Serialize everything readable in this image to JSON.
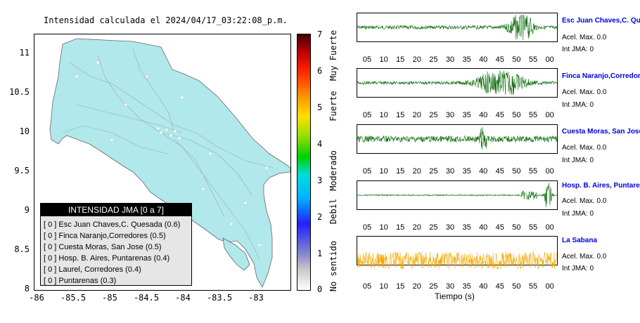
{
  "map": {
    "title": "Intensidad calculada el 2024/04/17_03:22:08_p.m.",
    "y_ticks": [
      "11",
      "10.5",
      "10",
      "9.5",
      "9",
      "8.5",
      "8"
    ],
    "x_ticks": [
      "-86",
      "-85.5",
      "-85",
      "-84.5",
      "-84",
      "-83.5",
      "-83"
    ],
    "land_color": "#b0e8ec",
    "colorbar": {
      "ticks": [
        "7",
        "6",
        "5",
        "4",
        "3",
        "2",
        "1",
        "0"
      ],
      "categories": [
        "Muy Fuerte",
        "Fuerte",
        "Moderado",
        "Debil",
        "No sentido"
      ]
    },
    "legend": {
      "title": "INTENSIDAD JMA [0 a 7]",
      "items": [
        "[ 0 ]  Esc Juan Chaves,C. Quesada (0.6)",
        "[ 0 ]  Finca Naranjo,Corredores (0.5)",
        "[ 0 ]  Cuesta Moras, San Jose (0.5)",
        "[ 0 ]  Hosp. B. Aires, Puntarenas (0.4)",
        "[ 0 ]  Laurel, Corredores (0.4)",
        "[ 0 ]  Puntarenas (0.3)"
      ]
    }
  },
  "traces": {
    "time_ticks": [
      "05",
      "10",
      "15",
      "20",
      "25",
      "30",
      "35",
      "40",
      "45",
      "50",
      "55",
      "00"
    ],
    "xlabel": "Tiempo (s)",
    "items": [
      {
        "name": "Esc Juan Chaves,C. Qu",
        "acel": "Acel. Max. 0.0",
        "int": "Int JMA: 0",
        "color": "#0a6a0a"
      },
      {
        "name": "Finca Naranjo,Corredore",
        "acel": "Acel. Max. 0.0",
        "int": "Int JMA: 0",
        "color": "#0a6a0a"
      },
      {
        "name": "Cuesta Moras, San Jose",
        "acel": "Acel. Max. 0.0",
        "int": "Int JMA: 0",
        "color": "#0a6a0a"
      },
      {
        "name": "Hosp. B. Aires, Puntare",
        "acel": "Acel. Max. 0.0",
        "int": "Int JMA: 0",
        "color": "#0a6a0a"
      },
      {
        "name": "La Sabana",
        "acel": "Acel. Max. 0.0",
        "int": "Int JMA: 0",
        "color": "#f5a800"
      }
    ]
  }
}
